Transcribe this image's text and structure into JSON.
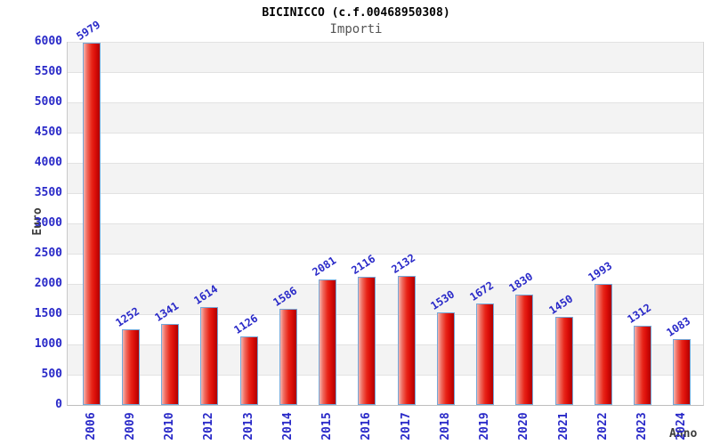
{
  "chart_data": {
    "type": "bar",
    "title": "BICINICCO (c.f.00468950308)",
    "subtitle": "Importi",
    "xlabel": "Anno",
    "ylabel": "Euro",
    "categories": [
      "2006",
      "2009",
      "2010",
      "2012",
      "2013",
      "2014",
      "2015",
      "2016",
      "2017",
      "2018",
      "2019",
      "2020",
      "2021",
      "2022",
      "2023",
      "2024"
    ],
    "values": [
      5979,
      1252,
      1341,
      1614,
      1126,
      1586,
      2081,
      2116,
      2132,
      1530,
      1672,
      1830,
      1450,
      1993,
      1312,
      1083
    ],
    "ylim": [
      0,
      6000
    ],
    "ytick_step": 500,
    "yticks": [
      0,
      500,
      1000,
      1500,
      2000,
      2500,
      3000,
      3500,
      4000,
      4500,
      5000,
      5500,
      6000
    ],
    "grid": "horizontal-stripes",
    "legend": "none",
    "colors": {
      "bar_fill_light": "#f5b4ae",
      "bar_fill_mid": "#e82619",
      "bar_fill_dark": "#b00000",
      "bar_border": "#74a8d8",
      "value_label": "#2929c8",
      "tick_label": "#2929c8",
      "axis_title": "#3d3d3d",
      "title": "#000000",
      "subtitle": "#555555",
      "stripe": "#f3f3f3",
      "gridline": "#e2e2e2",
      "axis_line": "#bdbdbd"
    }
  }
}
